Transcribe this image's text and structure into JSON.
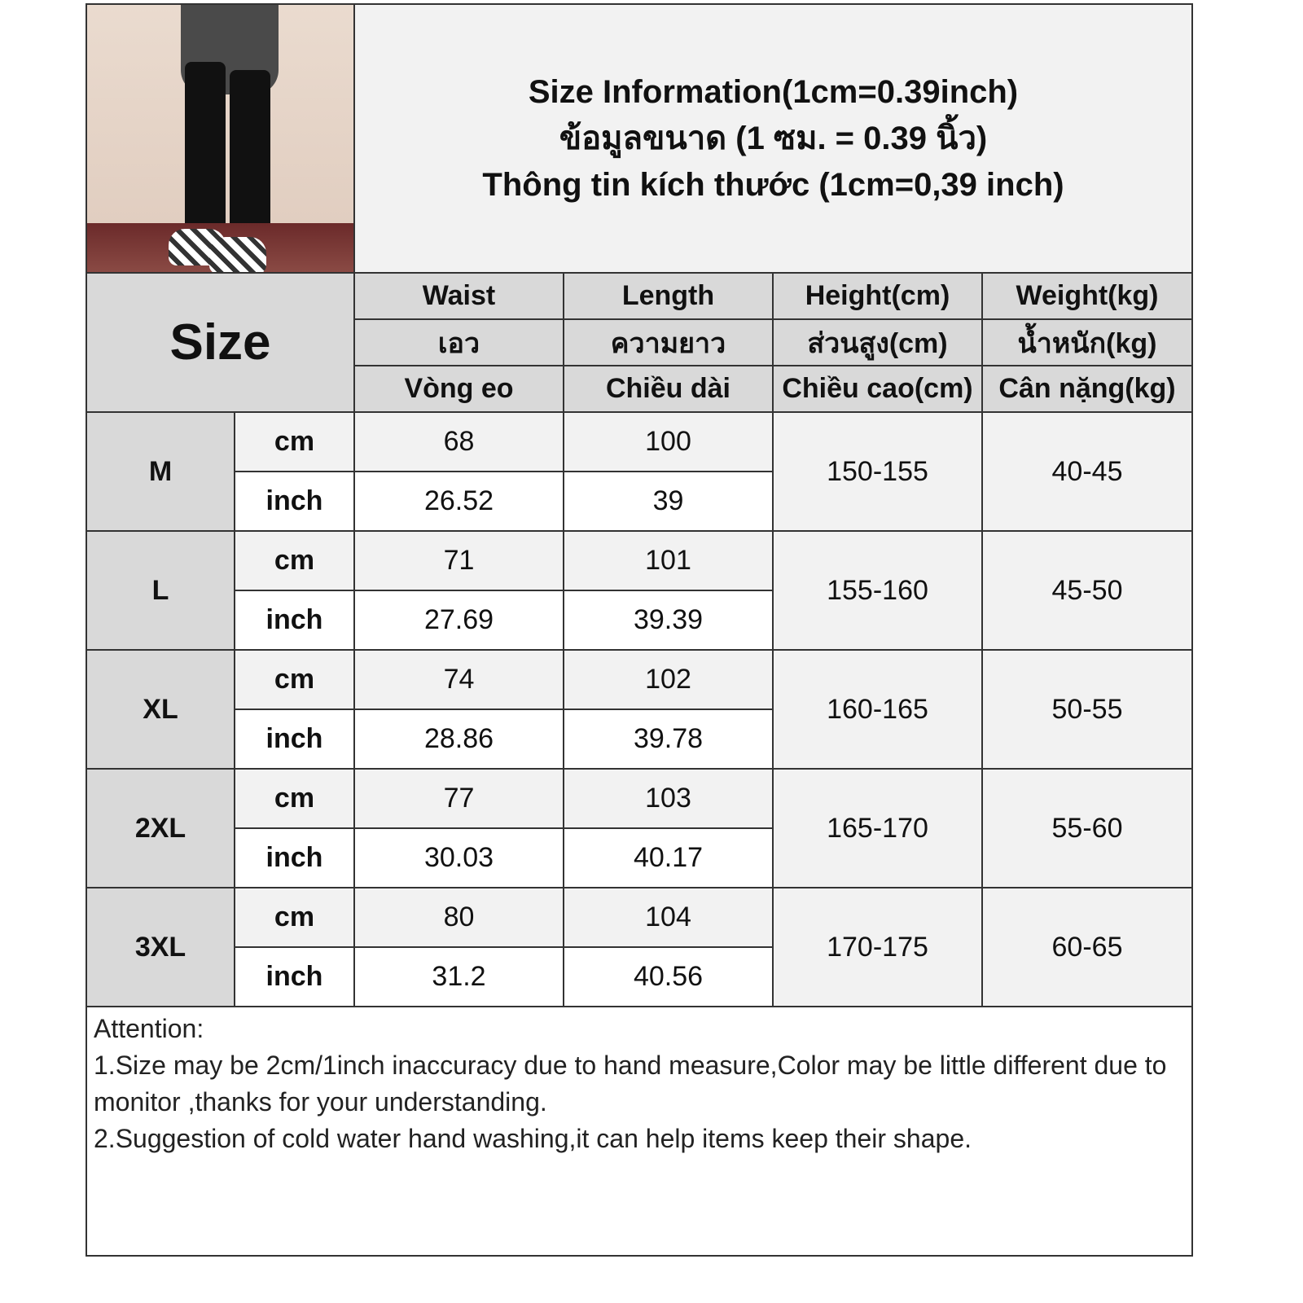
{
  "title": {
    "line1": "Size Information(1cm=0.39inch)",
    "line2": "ข้อมูลขนาด (1 ซม. = 0.39 นิ้ว)",
    "line3": "Thông tin kích thước (1cm=0,39 inch)"
  },
  "photo": {
    "description_icon": "pants-photo"
  },
  "header": {
    "size_label": "Size",
    "columns": [
      {
        "en": "Waist",
        "th": "เอว",
        "vi": "Vòng eo"
      },
      {
        "en": "Length",
        "th": "ความยาว",
        "vi": "Chiều dài"
      },
      {
        "en": "Height(cm)",
        "th": "ส่วนสูง(cm)",
        "vi": "Chiều cao(cm)"
      },
      {
        "en": "Weight(kg)",
        "th": "น้ำหนัก(kg)",
        "vi": "Cân nặng(kg)"
      }
    ]
  },
  "units": {
    "cm": "cm",
    "inch": "inch"
  },
  "rows": [
    {
      "size": "M",
      "waist_cm": "68",
      "length_cm": "100",
      "waist_in": "26.52",
      "length_in": "39",
      "height": "150-155",
      "weight": "40-45"
    },
    {
      "size": "L",
      "waist_cm": "71",
      "length_cm": "101",
      "waist_in": "27.69",
      "length_in": "39.39",
      "height": "155-160",
      "weight": "45-50"
    },
    {
      "size": "XL",
      "waist_cm": "74",
      "length_cm": "102",
      "waist_in": "28.86",
      "length_in": "39.78",
      "height": "160-165",
      "weight": "50-55"
    },
    {
      "size": "2XL",
      "waist_cm": "77",
      "length_cm": "103",
      "waist_in": "30.03",
      "length_in": "40.17",
      "height": "165-170",
      "weight": "55-60"
    },
    {
      "size": "3XL",
      "waist_cm": "80",
      "length_cm": "104",
      "waist_in": "31.2",
      "length_in": "40.56",
      "height": "170-175",
      "weight": "60-65"
    }
  ],
  "notes": {
    "heading": "Attention:",
    "line1": "1.Size may be 2cm/1inch inaccuracy due to hand measure,Color may be little different due to monitor ,thanks for your understanding.",
    "line2": "2.Suggestion of cold water hand washing,it can help items keep their shape."
  }
}
